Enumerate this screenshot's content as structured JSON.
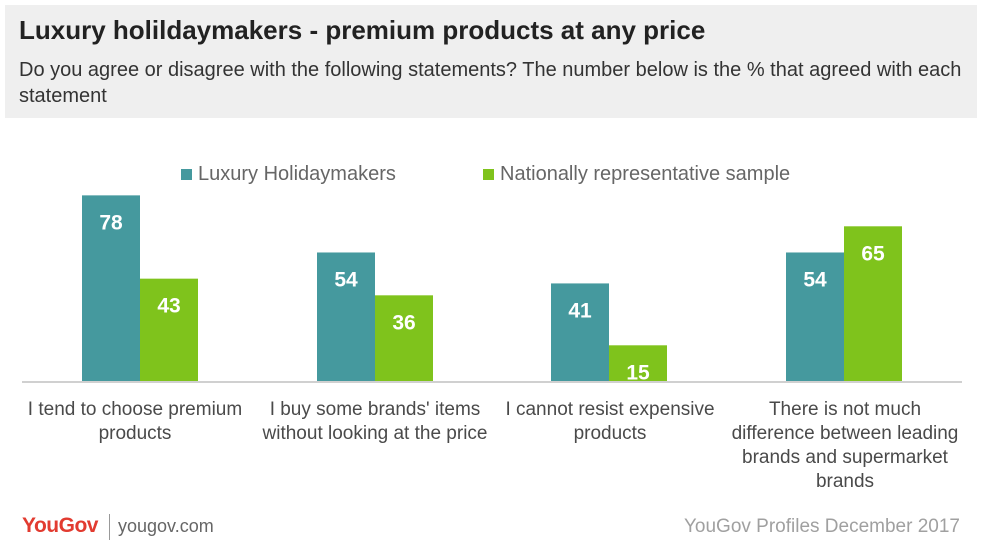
{
  "header": {
    "title": "Luxury holildaymakers - premium products at any price",
    "subtitle": "Do you agree or disagree with the following statements? The number below is the % that agreed with each statement"
  },
  "colors": {
    "series1": "#45999e",
    "series2": "#7fc31c"
  },
  "chart_data": {
    "type": "bar",
    "categories": [
      "I tend to choose premium products",
      "I buy some brands' items without looking at the price",
      "I cannot resist expensive products",
      "There is not much difference between leading brands and supermarket brands"
    ],
    "series": [
      {
        "name": "Luxury Holidaymakers",
        "values": [
          78,
          54,
          41,
          54
        ]
      },
      {
        "name": "Nationally representative sample",
        "values": [
          43,
          36,
          15,
          65
        ]
      }
    ],
    "title": "Luxury holildaymakers - premium products at any price",
    "xlabel": "",
    "ylabel": "",
    "ylim": [
      0,
      100
    ],
    "grid": false,
    "legend": "top"
  },
  "footer": {
    "logo": "YouGov",
    "website": "yougov.com",
    "source": "YouGov Profiles December 2017"
  }
}
